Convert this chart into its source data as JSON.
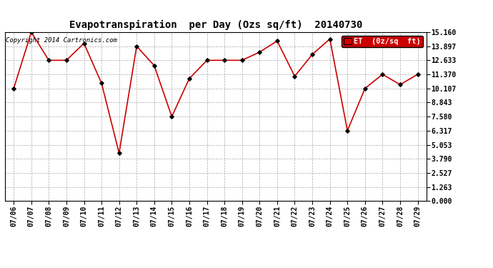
{
  "title": "Evapotranspiration  per Day (Ozs sq/ft)  20140730",
  "copyright": "Copyright 2014 Cartronics.com",
  "legend_label": "ET  (0z/sq  ft)",
  "x_labels": [
    "07/06",
    "07/07",
    "07/08",
    "07/09",
    "07/10",
    "07/11",
    "07/12",
    "07/13",
    "07/14",
    "07/15",
    "07/16",
    "07/17",
    "07/18",
    "07/19",
    "07/20",
    "07/21",
    "07/22",
    "07/23",
    "07/24",
    "07/25",
    "07/26",
    "07/27",
    "07/28",
    "07/29"
  ],
  "y_values": [
    10.107,
    15.16,
    12.633,
    12.633,
    14.16,
    10.58,
    4.3,
    13.897,
    12.16,
    7.58,
    11.0,
    12.633,
    12.633,
    12.633,
    13.37,
    14.37,
    11.2,
    13.16,
    14.55,
    6.317,
    10.107,
    11.37,
    10.45,
    11.37
  ],
  "y_ticks": [
    0.0,
    1.263,
    2.527,
    3.79,
    5.053,
    6.317,
    7.58,
    8.843,
    10.107,
    11.37,
    12.633,
    13.897,
    15.16
  ],
  "y_min": 0.0,
  "y_max": 15.16,
  "line_color": "#cc0000",
  "marker_color": "#000000",
  "bg_color": "#ffffff",
  "grid_color": "#aaaaaa",
  "legend_bg": "#cc0000",
  "legend_text_color": "#ffffff",
  "title_fontsize": 10,
  "copyright_fontsize": 6.5,
  "tick_fontsize": 7,
  "legend_fontsize": 7.5
}
